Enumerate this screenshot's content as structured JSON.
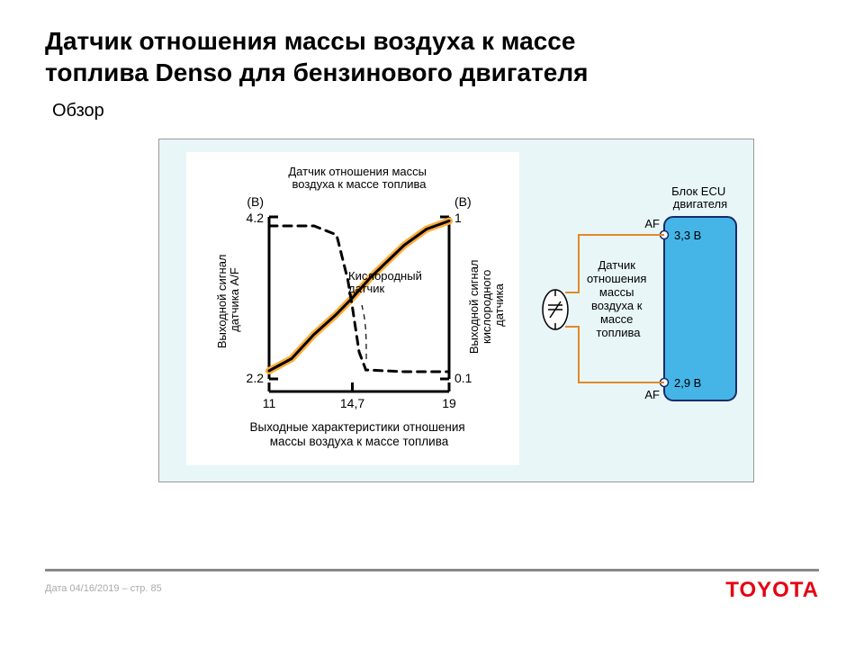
{
  "title": "Датчик отношения массы воздуха к массе\nтоплива Denso для бензинового двигателя",
  "subtitle": "Обзор",
  "footer": {
    "date_label": "Дата 04/16/2019 – стр.  85"
  },
  "brand": "TOYOTA",
  "colors": {
    "frame_bg": "#e8f6f8",
    "frame_border": "#999999",
    "axis_black": "#000000",
    "af_fill": "#ffae3d",
    "af_core": "#000000",
    "o2_dash": "#000000",
    "ecu_fill": "#44b5e6",
    "ecu_border": "#1b2a6b",
    "wire_color": "#e08a2a",
    "brand_color": "#e60012",
    "rule_color": "#888888",
    "footer_text": "#aaaaaa"
  },
  "chart": {
    "type": "line",
    "left_axis": {
      "label": "(В)",
      "ticks": [
        "4.2",
        "2.2"
      ],
      "title": "Выходной сигнал\nдатчика A/F"
    },
    "right_axis": {
      "label": "(В)",
      "ticks": [
        "1",
        "0.1"
      ],
      "title": "Выходной сигнал\nкислородного\nдатчика"
    },
    "x_axis": {
      "ticks": [
        "11",
        "14,7",
        "19"
      ],
      "title": "Выходные характеристики отношения\nмассы воздуха к массе топлива"
    },
    "af_label": "Датчик отношения массы\nвоздуха к массе топлива",
    "o2_label": "Кислородный\nдатчик",
    "plot": {
      "x_range": [
        11,
        19
      ],
      "y_left_range": [
        2.2,
        4.2
      ],
      "y_right_range": [
        0.1,
        1.0
      ],
      "af_points_left_scale": [
        [
          11,
          2.3
        ],
        [
          12,
          2.45
        ],
        [
          13,
          2.75
        ],
        [
          14,
          3.0
        ],
        [
          14.7,
          3.2
        ],
        [
          15.5,
          3.45
        ],
        [
          17,
          3.85
        ],
        [
          18,
          4.05
        ],
        [
          19,
          4.15
        ]
      ],
      "o2_points_right_scale": [
        [
          11,
          0.95
        ],
        [
          13,
          0.95
        ],
        [
          14,
          0.9
        ],
        [
          14.5,
          0.65
        ],
        [
          14.7,
          0.5
        ],
        [
          15,
          0.25
        ],
        [
          15.3,
          0.15
        ],
        [
          17,
          0.14
        ],
        [
          19,
          0.14
        ]
      ],
      "af_stroke_width_outer": 8,
      "af_stroke_width_inner": 3,
      "o2_stroke_width": 3,
      "o2_dasharray": "9,7"
    }
  },
  "ecu": {
    "title": "Блок ECU\nдвигателя",
    "top_pin": "AF",
    "bottom_pin": "AF",
    "top_voltage": "3,3 В",
    "bottom_voltage": "2,9 В",
    "sensor_label": "Датчик\nотношения\nмассы\nвоздуха к\nмассе\nтоплива"
  }
}
